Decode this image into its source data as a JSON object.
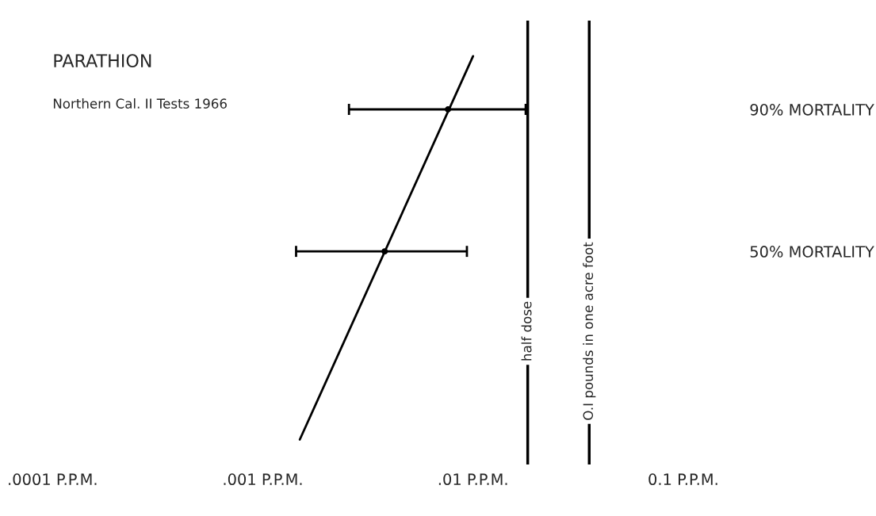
{
  "chart_data": {
    "type": "line",
    "title": "PARATHION",
    "annotations": [
      "Northern Cal. II Tests 1966"
    ],
    "log": "x",
    "xlim": [
      0.0001,
      0.1
    ],
    "xticks": [
      {
        "value": 0.0001,
        "label": ".0001 P.P.M."
      },
      {
        "value": 0.001,
        "label": ".001 P.P.M."
      },
      {
        "value": 0.01,
        "label": ".01 P.P.M."
      },
      {
        "value": 0.1,
        "label": "0.1 P.P.M."
      }
    ],
    "ylim": [
      -10,
      115
    ],
    "yticks": [
      {
        "value": 50,
        "label": "50% MORTALITY"
      },
      {
        "value": 90,
        "label": "90% MORTALITY"
      }
    ],
    "grid": false,
    "series": [
      {
        "x": [
          0.0015,
          0.01
        ],
        "values": [
          -3,
          105
        ],
        "color": "#000000",
        "marker": "none"
      },
      {
        "type": "scatter",
        "x": [
          0.0038,
          0.0076
        ],
        "values": [
          50,
          90
        ],
        "xerrors": [
          [
            0.00144,
            0.00935
          ],
          [
            0.00257,
            0.0178
          ]
        ],
        "color": "#000000",
        "marker": "circle"
      }
    ],
    "ref_lines": [
      {
        "axis": "x",
        "value": 0.0182,
        "label": "half dose",
        "color": "#000000"
      },
      {
        "axis": "x",
        "value": 0.0357,
        "label": "O.I pounds in one acre foot",
        "color": "#000000"
      }
    ]
  }
}
